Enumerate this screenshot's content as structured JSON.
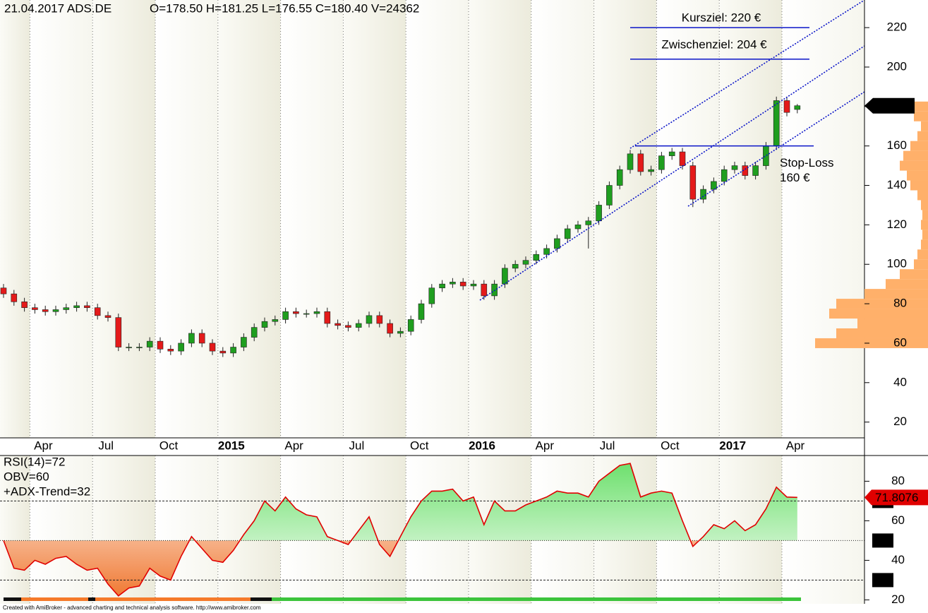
{
  "chart_data": [
    {
      "type": "candlestick",
      "title": "21.04.2017 ADS.DE",
      "subtitle": "O=178.50  H=181.25  L=176.55  C=180.40  V=24362",
      "categories": [
        null,
        null,
        null,
        "Apr",
        null,
        null,
        null,
        null,
        null,
        "Jul",
        null,
        null,
        null,
        null,
        null,
        "Oct",
        null,
        null,
        null,
        null,
        null,
        "2015",
        null,
        null,
        null,
        null,
        null,
        "Apr",
        null,
        null,
        null,
        null,
        null,
        "Jul",
        null,
        null,
        null,
        null,
        null,
        "Oct",
        null,
        null,
        null,
        null,
        null,
        "2016",
        null,
        null,
        null,
        null,
        null,
        "Apr",
        null,
        null,
        null,
        null,
        null,
        "Jul",
        null,
        null,
        null,
        null,
        null,
        "Oct",
        null,
        null,
        null,
        null,
        null,
        "2017",
        null,
        null,
        null,
        null,
        null,
        "Apr",
        null
      ],
      "open": [
        88,
        85,
        81,
        78,
        77,
        76,
        77,
        78,
        79,
        78,
        74,
        73,
        58,
        58,
        58,
        61,
        57,
        56,
        60,
        65,
        60,
        56,
        55,
        58,
        63,
        68,
        71,
        72,
        76,
        75,
        75,
        76,
        70,
        69,
        68,
        70,
        74,
        70,
        65,
        66,
        72,
        80,
        88,
        90,
        91,
        89,
        90,
        84,
        90,
        98,
        100,
        102,
        105,
        108,
        113,
        118,
        120,
        122,
        130,
        140,
        148,
        156,
        147,
        148,
        155,
        157,
        150,
        133,
        138,
        142,
        148,
        150,
        145,
        150,
        160,
        183,
        178.5
      ],
      "high": [
        90,
        87,
        83,
        80,
        79,
        79,
        80,
        81,
        81,
        80,
        76,
        75,
        60,
        60,
        63,
        63,
        59,
        62,
        67,
        67,
        62,
        58,
        60,
        65,
        70,
        73,
        74,
        78,
        78,
        77,
        78,
        78,
        72,
        71,
        72,
        76,
        76,
        72,
        68,
        74,
        82,
        90,
        92,
        93,
        93,
        92,
        92,
        92,
        100,
        102,
        104,
        107,
        110,
        115,
        120,
        122,
        124,
        132,
        142,
        150,
        158,
        158,
        150,
        157,
        159,
        159,
        152,
        140,
        144,
        150,
        152,
        152,
        152,
        162,
        185,
        185,
        181.25
      ],
      "low": [
        83,
        79,
        76,
        75,
        74,
        74,
        75,
        76,
        76,
        72,
        71,
        56,
        56,
        56,
        56,
        55,
        54,
        54,
        58,
        58,
        54,
        53,
        53,
        56,
        61,
        66,
        69,
        70,
        73,
        73,
        73,
        68,
        67,
        66,
        66,
        68,
        68,
        63,
        63,
        64,
        70,
        78,
        86,
        88,
        87,
        87,
        82,
        82,
        88,
        96,
        98,
        100,
        103,
        106,
        111,
        116,
        108,
        120,
        128,
        138,
        146,
        145,
        145,
        146,
        153,
        148,
        129,
        131,
        136,
        140,
        146,
        143,
        143,
        148,
        158,
        175,
        176.55
      ],
      "close": [
        85,
        81,
        78,
        77,
        76,
        77,
        78,
        79,
        78,
        74,
        73,
        58,
        58,
        58,
        61,
        57,
        56,
        60,
        65,
        60,
        56,
        55,
        58,
        63,
        68,
        71,
        72,
        76,
        75,
        75,
        76,
        70,
        69,
        68,
        70,
        74,
        70,
        65,
        66,
        72,
        80,
        88,
        90,
        91,
        89,
        90,
        84,
        90,
        98,
        100,
        102,
        105,
        108,
        113,
        118,
        120,
        122,
        130,
        140,
        148,
        156,
        147,
        148,
        155,
        157,
        150,
        133,
        138,
        142,
        148,
        150,
        145,
        150,
        160,
        183,
        177,
        180.4
      ],
      "last_value_label": "180.4",
      "up_color": "#1f9e1f",
      "down_color": "#e41a1a",
      "ylim": [
        12,
        234
      ],
      "yticks": [
        20,
        40,
        60,
        80,
        100,
        120,
        140,
        160,
        180,
        200,
        220
      ],
      "annotations": [
        {
          "text_lines": [
            "Kursziel: 220 €"
          ],
          "value": 220
        },
        {
          "text_lines": [
            "Zwischenziel: 204 €"
          ],
          "value": 204
        },
        {
          "text_lines": [
            "Stop-Loss",
            "160 €"
          ],
          "value": 160
        }
      ],
      "annotation_color": "#0a14c8",
      "volume_profile": {
        "prices": [
          60,
          65,
          70,
          75,
          80,
          85,
          90,
          95,
          100,
          105,
          110,
          115,
          120,
          125,
          130,
          135,
          140,
          145,
          150,
          155,
          160,
          165,
          170,
          175,
          180
        ],
        "values": [
          160,
          130,
          100,
          140,
          130,
          90,
          60,
          40,
          20,
          15,
          10,
          8,
          10,
          8,
          10,
          15,
          25,
          30,
          40,
          35,
          25,
          15,
          10,
          20,
          25
        ],
        "color": "#ffb06a"
      }
    },
    {
      "type": "line",
      "legend_lines": [
        "RSI(14)=72",
        "OBV=60",
        "+ADX-Trend=32"
      ],
      "color": "#e00000",
      "values": [
        50,
        36,
        35,
        40,
        38,
        41,
        42,
        38,
        35,
        36,
        28,
        22,
        26,
        27,
        36,
        32,
        30,
        42,
        52,
        46,
        40,
        39,
        45,
        53,
        60,
        70,
        65,
        72,
        66,
        63,
        62,
        52,
        50,
        48,
        55,
        62,
        48,
        42,
        52,
        62,
        70,
        75,
        75,
        76,
        70,
        72,
        58,
        70,
        65,
        65,
        68,
        70,
        72,
        75,
        74,
        74,
        72,
        80,
        84,
        88,
        89,
        72,
        74,
        75,
        74,
        60,
        47,
        52,
        58,
        56,
        60,
        55,
        58,
        66,
        77,
        72,
        71.8076
      ],
      "last_value_label": "71.8076",
      "ylim": [
        18,
        93
      ],
      "yticks": [
        20,
        40,
        60,
        80
      ],
      "levels": [
        70,
        50,
        30
      ]
    }
  ],
  "footer": "Created with AmiBroker - advanced charting and technical analysis software. http://www.amibroker.com"
}
